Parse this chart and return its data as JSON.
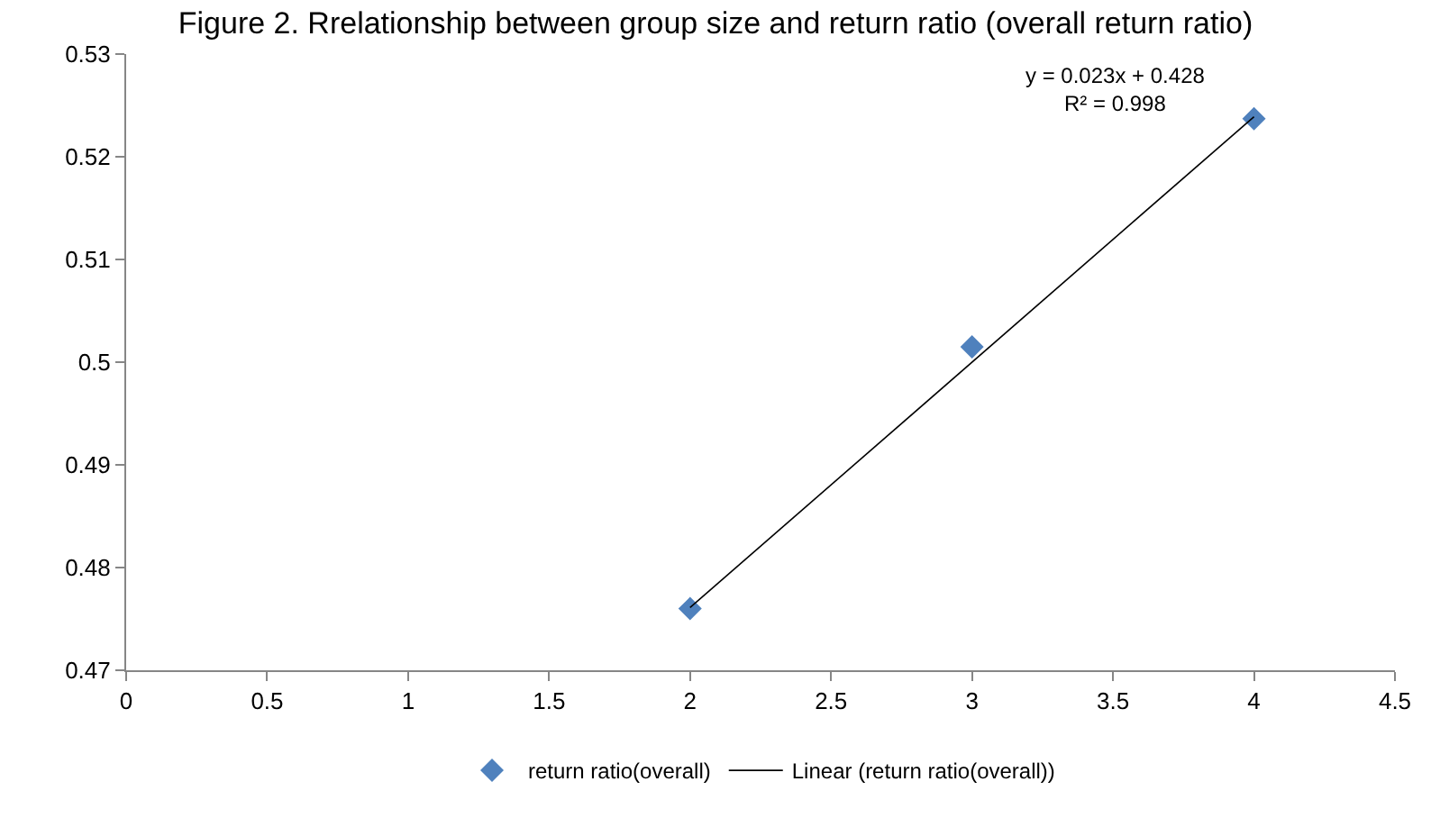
{
  "chart_data": {
    "type": "scatter",
    "title": "Figure 2. Rrelationship between group size and return ratio (overall return ratio)",
    "series": [
      {
        "name": "return ratio(overall)",
        "color": "#4f81bd",
        "marker": "diamond",
        "x": [
          2,
          3,
          4
        ],
        "values": [
          0.476,
          0.5015,
          0.5237
        ]
      },
      {
        "name": "Linear (return ratio(overall))",
        "type": "line",
        "color": "#000000",
        "marker": "none",
        "x": [
          2,
          4
        ],
        "values": [
          0.4761,
          0.5239
        ]
      }
    ],
    "xlim": [
      0,
      4.5
    ],
    "xticks": [
      0,
      0.5,
      1,
      1.5,
      2,
      2.5,
      3,
      3.5,
      4,
      4.5
    ],
    "ylim": [
      0.47,
      0.53
    ],
    "yticks": [
      0.47,
      0.48,
      0.49,
      0.5,
      0.51,
      0.52,
      0.53
    ],
    "annotations": [
      "y = 0.023x + 0.428\nR² = 0.998"
    ],
    "legend": "bottom"
  }
}
